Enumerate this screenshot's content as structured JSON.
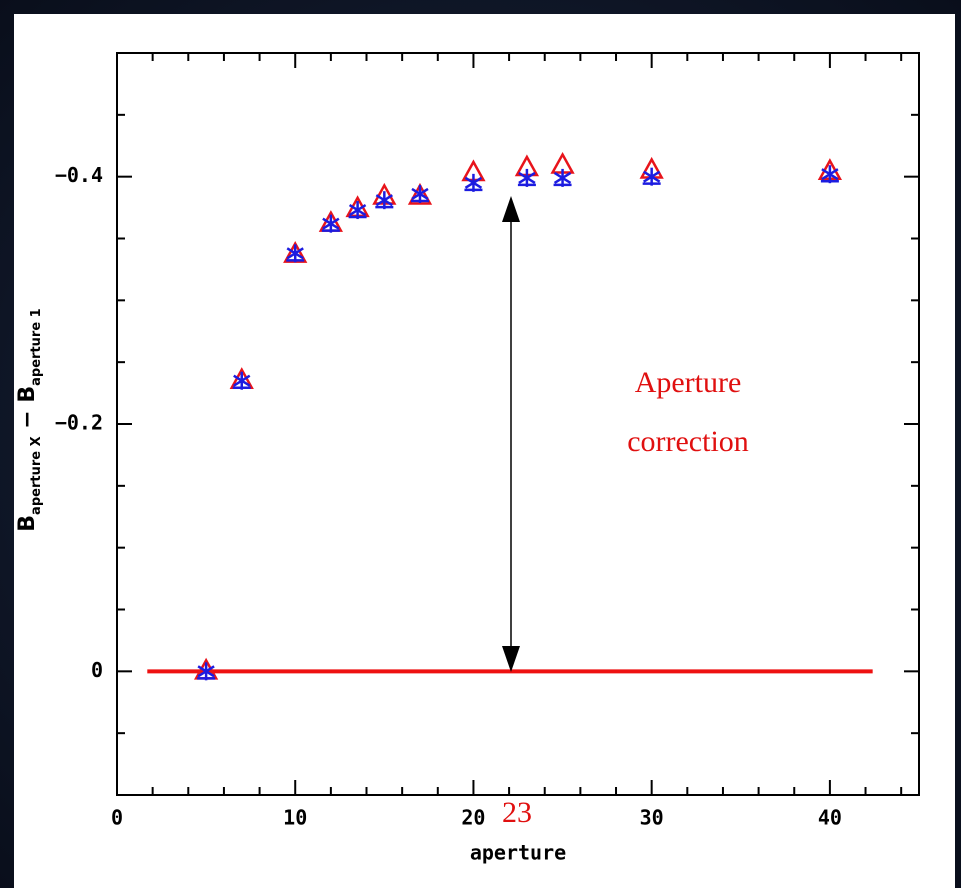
{
  "chart_data": {
    "type": "scatter",
    "xlabel": "aperture",
    "ylabel": [
      "B",
      "aperture X",
      " − ",
      "B",
      "aperture 1"
    ],
    "xlim": [
      0,
      45
    ],
    "ylim": [
      0.1,
      -0.5
    ],
    "xticks": [
      0,
      10,
      20,
      30,
      40
    ],
    "xminorticks": [
      2,
      4,
      6,
      8,
      12,
      14,
      16,
      18,
      22,
      24,
      26,
      28,
      32,
      34,
      36,
      38,
      42,
      44
    ],
    "yticks": [
      {
        "value": -0.4,
        "label": "−0.4"
      },
      {
        "value": -0.2,
        "label": "−0.2"
      },
      0
    ],
    "yminorticks": [
      0.05,
      -0.05,
      -0.1,
      -0.15,
      -0.25,
      -0.3,
      -0.35,
      -0.45,
      -0.5
    ],
    "x": [
      5,
      7,
      10,
      12,
      13.5,
      15,
      17,
      20,
      23,
      25,
      30,
      40
    ],
    "series": [
      {
        "marker": "triangle",
        "color": "#e8141b",
        "values": [
          0,
          -0.235,
          -0.337,
          -0.362,
          -0.374,
          -0.384,
          -0.384,
          -0.403,
          -0.407,
          -0.409,
          -0.405,
          -0.404
        ]
      },
      {
        "marker": "asterisk",
        "color": "#1c1ce0",
        "values": [
          0,
          -0.235,
          -0.338,
          -0.362,
          -0.373,
          -0.381,
          -0.386,
          -0.395,
          -0.399,
          -0.399,
          -0.4,
          -0.402
        ]
      }
    ],
    "reference_line": {
      "x": [
        1.7,
        42.4
      ],
      "y": 0,
      "color": "#ee1111"
    },
    "annotation": {
      "lines": [
        "Aperture",
        "correction"
      ],
      "marker_label": "23",
      "color": "#e01010"
    }
  }
}
